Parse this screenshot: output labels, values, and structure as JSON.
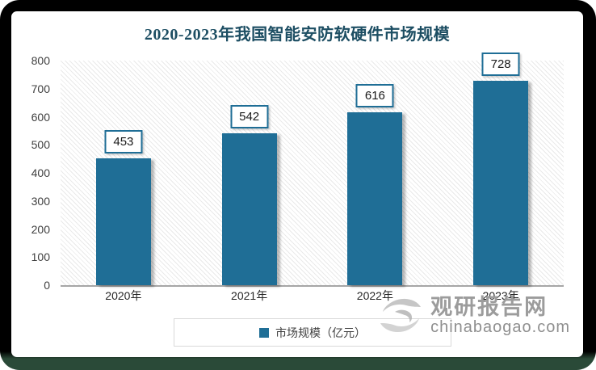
{
  "title": "2020-2023年我国智能安防软硬件市场规模",
  "colors": {
    "title": "#1d4e63",
    "bar": "#1f6e96",
    "axis_line": "#a6a6a6",
    "watermark_gray": "#9c9c9c"
  },
  "chart_data": {
    "type": "bar",
    "title": "2020-2023年我国智能安防软硬件市场规模",
    "categories": [
      "2020年",
      "2021年",
      "2022年",
      "2023年"
    ],
    "values": [
      453,
      542,
      616,
      728
    ],
    "series_name": "市场规模（亿元）",
    "xlabel": "",
    "ylabel": "",
    "ylim": [
      0,
      800
    ],
    "yticks": [
      0,
      100,
      200,
      300,
      400,
      500,
      600,
      700,
      800
    ],
    "grid": false,
    "data_labels": true,
    "legend_position": "bottom",
    "bar_color": "#1f6e96"
  },
  "legend": {
    "label": "市场规模（亿元）",
    "marker_color": "#1f6e96"
  },
  "watermark": {
    "site_name": "观研报告网",
    "site_url": "chinabaogao.com"
  }
}
